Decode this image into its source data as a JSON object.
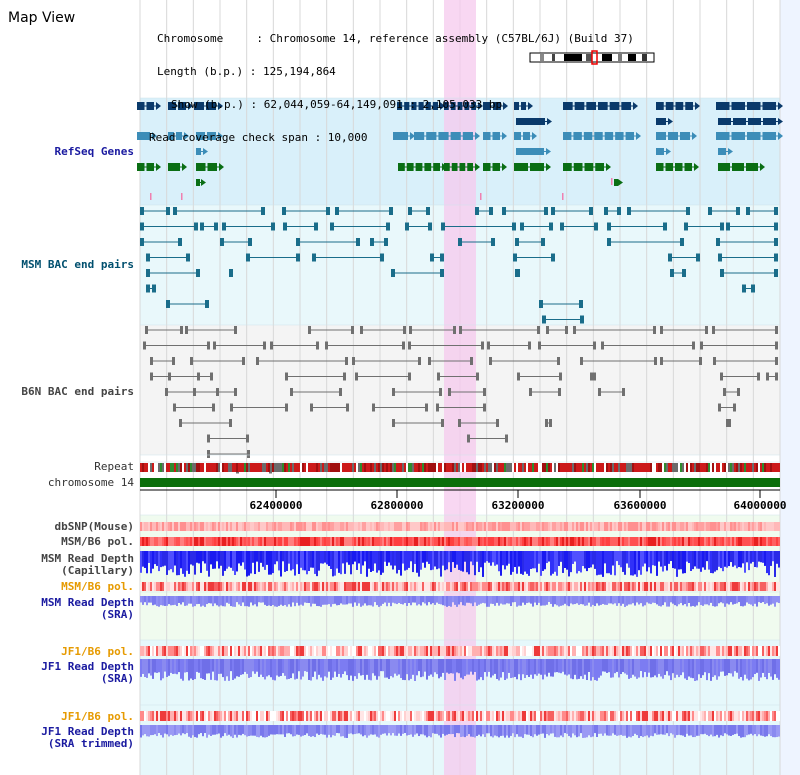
{
  "map_title": "Map View",
  "info": {
    "chromosome": "Chromosome     : Chromosome 14, reference assembly (C57BL/6J) (Build 37)",
    "length": "Length (b.p.) : 125,194,864",
    "show": "Show (b.p.) : 62,044,059-64,149,091 : 2,105,033 bp",
    "coverage": "Read coverage check span : 10,000"
  },
  "labels": {
    "refseq": "RefSeq Genes",
    "msm_bac": "MSM BAC end pairs",
    "b6n_bac": "B6N BAC end pairs",
    "repeat": "Repeat",
    "chromosome": "chromosome 14",
    "dbsnp": "dbSNP(Mouse)",
    "msm_b6_pol_1": "MSM/B6 pol.",
    "msm_read_depth_cap_1": "MSM Read Depth",
    "msm_read_depth_cap_2": "(Capillary)",
    "msm_b6_pol_2": "MSM/B6 pol.",
    "msm_read_depth_sra_1": "MSM Read Depth",
    "msm_read_depth_sra_2": "(SRA)",
    "jf1_b6_pol_1": "JF1/B6 pol.",
    "jf1_read_depth_sra_1": "JF1 Read Depth",
    "jf1_read_depth_sra_2": "(SRA)",
    "jf1_b6_pol_2": "JF1/B6 pol.",
    "jf1_read_depth_trim_1": "JF1 Read Depth",
    "jf1_read_depth_trim_2": "(SRA trimmed)"
  },
  "axis": {
    "ticks": [
      "62400000",
      "62800000",
      "63200000",
      "63600000",
      "64000000"
    ]
  },
  "colors": {
    "refseq_bg": "#d9f0fa",
    "bac_bg": "#e9f8fb",
    "highlight": "#f5c9ee",
    "gene_dark": "#0a3a6b",
    "gene_mid": "#3c8db8",
    "gene_green": "#0a6e14",
    "msm_bac_line": "#1a6d8a",
    "b6n_bac_line": "#707070",
    "chromosome_bar": "#0a6e0a",
    "depth_blue": "#2020e0",
    "depth_lavender": "#8888f0",
    "pol_red": "#e02020",
    "label_orange": "#e69a00"
  },
  "ideogram_icon": "chromosome-ideogram-icon"
}
